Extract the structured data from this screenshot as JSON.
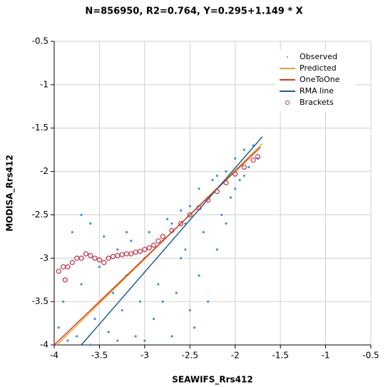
{
  "chart_data": {
    "type": "scatter",
    "title": "N=856950, R2=0.764, Y=0.295+1.149 * X",
    "x_label": "SEAWIFS_Rrs412",
    "y_label": "MODISA_Rrs412",
    "xlim": [
      -4,
      -0.5
    ],
    "ylim": [
      -4,
      -0.5
    ],
    "xticks": [
      -4,
      -3.5,
      -3,
      -2.5,
      -2,
      -1.5,
      -1,
      -0.5
    ],
    "yticks": [
      -4,
      -3.5,
      -3,
      -2.5,
      -2,
      -1.5,
      -1,
      -0.5
    ],
    "grid": true,
    "legend": "upper-right",
    "series": [
      {
        "name": "Observed",
        "color": "#3d8fe6",
        "mark": "dot",
        "x": [
          -3.9,
          -3.8,
          -3.75,
          -3.7,
          -3.6,
          -3.55,
          -3.5,
          -3.45,
          -3.4,
          -3.35,
          -3.3,
          -3.25,
          -3.2,
          -3.15,
          -3.1,
          -3.05,
          -3.0,
          -2.95,
          -2.9,
          -2.85,
          -2.8,
          -2.75,
          -2.7,
          -2.65,
          -2.6,
          -2.55,
          -2.5,
          -2.45,
          -2.4,
          -2.35,
          -2.3,
          -2.25,
          -2.2,
          -2.15,
          -2.1,
          -2.05,
          -2.0,
          -1.95,
          -1.9,
          -1.85,
          -1.8,
          -1.75,
          -3.85,
          -3.6,
          -3.0,
          -2.5,
          -2.4,
          -2.2,
          -2.6,
          -2.0,
          -3.7,
          -3.95,
          -3.3,
          -2.8,
          -2.3,
          -2.1,
          -1.9,
          -2.55,
          -2.7,
          -3.2
        ],
        "y": [
          -3.5,
          -2.7,
          -3.9,
          -3.3,
          -2.6,
          -3.7,
          -3.1,
          -2.75,
          -3.85,
          -3.4,
          -2.9,
          -3.6,
          -3.2,
          -2.8,
          -3.9,
          -3.5,
          -3.0,
          -2.7,
          -3.7,
          -3.3,
          -2.8,
          -2.55,
          -3.9,
          -3.4,
          -3.0,
          -2.6,
          -2.4,
          -3.8,
          -3.2,
          -2.7,
          -2.3,
          -2.1,
          -2.9,
          -2.5,
          -2.0,
          -2.3,
          -1.85,
          -2.1,
          -1.75,
          -1.95,
          -1.7,
          -1.85,
          -3.95,
          -4.0,
          -3.95,
          -3.6,
          -2.2,
          -2.05,
          -2.45,
          -2.2,
          -2.5,
          -3.8,
          -3.95,
          -3.5,
          -3.5,
          -2.6,
          -2.05,
          -2.9,
          -2.6,
          -2.7
        ]
      },
      {
        "name": "Predicted",
        "color": "#f0a030",
        "mark": "line",
        "x": [
          -3.97,
          -1.7
        ],
        "y": [
          -4,
          -1.68
        ]
      },
      {
        "name": "OneToOne",
        "color": "#c8401e",
        "mark": "line",
        "x": [
          -4,
          -1.72
        ],
        "y": [
          -4,
          -1.72
        ]
      },
      {
        "name": "RMA line",
        "color": "#1f5f8b",
        "mark": "line",
        "x": [
          -3.7,
          -1.7
        ],
        "y": [
          -4,
          -1.6
        ]
      },
      {
        "name": "Brackets",
        "color": "#c0304a",
        "mark": "circle",
        "x": [
          -3.95,
          -3.9,
          -3.88,
          -3.85,
          -3.8,
          -3.75,
          -3.7,
          -3.65,
          -3.6,
          -3.55,
          -3.5,
          -3.45,
          -3.4,
          -3.35,
          -3.3,
          -3.25,
          -3.2,
          -3.15,
          -3.1,
          -3.05,
          -3.0,
          -2.95,
          -2.9,
          -2.85,
          -2.8,
          -2.7,
          -2.6,
          -2.5,
          -2.4,
          -2.3,
          -2.2,
          -2.1,
          -2.0,
          -1.9,
          -1.8,
          -1.75
        ],
        "y": [
          -3.15,
          -3.1,
          -3.25,
          -3.1,
          -3.05,
          -3.0,
          -3.0,
          -2.95,
          -2.97,
          -3.0,
          -3.02,
          -3.05,
          -3.0,
          -2.98,
          -2.97,
          -2.96,
          -2.95,
          -2.95,
          -2.93,
          -2.92,
          -2.9,
          -2.88,
          -2.85,
          -2.8,
          -2.75,
          -2.68,
          -2.6,
          -2.5,
          -2.42,
          -2.33,
          -2.23,
          -2.13,
          -2.03,
          -1.95,
          -1.87,
          -1.83
        ]
      }
    ]
  }
}
